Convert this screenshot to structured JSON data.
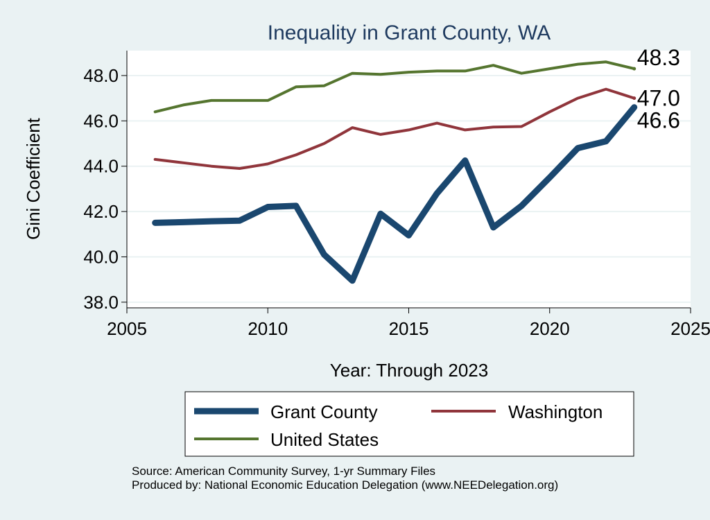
{
  "chart_data": {
    "type": "line",
    "title": "Inequality in Grant County, WA",
    "xlabel": "Year: Through 2023",
    "ylabel": "Gini Coefficient",
    "xlim": [
      2005,
      2025
    ],
    "ylim": [
      37.75,
      49.1
    ],
    "x_ticks": [
      2005,
      2010,
      2015,
      2020,
      2025
    ],
    "y_ticks": [
      38.0,
      40.0,
      42.0,
      44.0,
      46.0,
      48.0
    ],
    "y_tick_labels": [
      "38.0",
      "40.0",
      "42.0",
      "44.0",
      "46.0",
      "48.0"
    ],
    "grid": true,
    "legend_position": "bottom",
    "series": [
      {
        "name": "Grant County",
        "color": "#1a476f",
        "x": [
          2006,
          2007,
          2008,
          2009,
          2010,
          2011,
          2012,
          2013,
          2014,
          2015,
          2016,
          2017,
          2018,
          2019,
          2020,
          2021,
          2022,
          2023
        ],
        "values": [
          41.5,
          41.53,
          41.57,
          41.6,
          42.2,
          42.25,
          40.1,
          38.95,
          41.9,
          40.95,
          42.8,
          44.25,
          41.3,
          42.25,
          43.5,
          44.8,
          45.1,
          46.6
        ],
        "end_label": "46.6"
      },
      {
        "name": "Washington",
        "color": "#90353b",
        "x": [
          2006,
          2007,
          2008,
          2009,
          2010,
          2011,
          2012,
          2013,
          2014,
          2015,
          2016,
          2017,
          2018,
          2019,
          2020,
          2021,
          2022,
          2023
        ],
        "values": [
          44.3,
          44.15,
          44.0,
          43.9,
          44.1,
          44.5,
          45.0,
          45.7,
          45.4,
          45.6,
          45.9,
          45.6,
          45.73,
          45.75,
          46.4,
          47.0,
          47.4,
          47.0
        ],
        "end_label": "47.0"
      },
      {
        "name": "United States",
        "color": "#55752f",
        "x": [
          2006,
          2007,
          2008,
          2009,
          2010,
          2011,
          2012,
          2013,
          2014,
          2015,
          2016,
          2017,
          2018,
          2019,
          2020,
          2021,
          2022,
          2023
        ],
        "values": [
          46.4,
          46.7,
          46.9,
          46.9,
          46.9,
          47.5,
          47.55,
          48.1,
          48.05,
          48.15,
          48.2,
          48.2,
          48.45,
          48.1,
          48.3,
          48.5,
          48.6,
          48.3
        ],
        "end_label": "48.3"
      }
    ]
  },
  "source": {
    "line1": "Source: American Community Survey, 1-yr Summary Files",
    "line2": "Produced by: National Economic Education Delegation (www.NEEDelegation.org)"
  }
}
